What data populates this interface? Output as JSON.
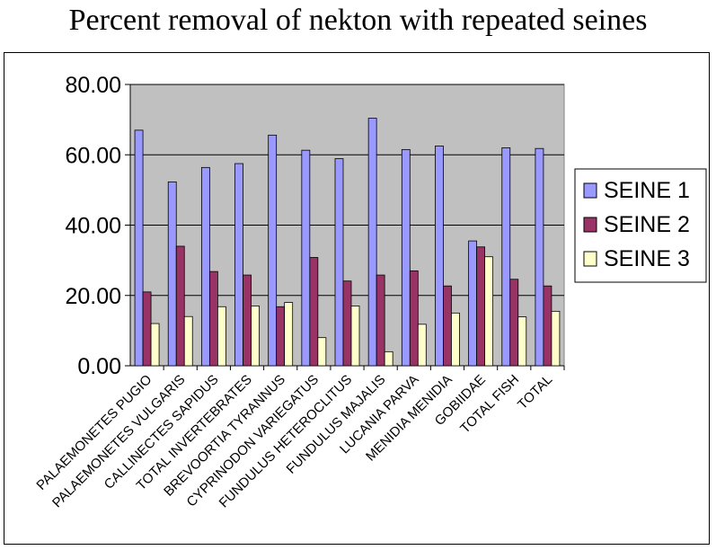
{
  "chart_data": {
    "type": "bar",
    "title": "Percent removal of nekton with repeated seines",
    "xlabel": "",
    "ylabel": "",
    "ylim": [
      0,
      80
    ],
    "yticks": [
      "0.00",
      "20.00",
      "40.00",
      "60.00",
      "80.00"
    ],
    "grid": true,
    "legend_position": "right",
    "categories": [
      "PALAEMONETES PUGIO",
      "PALAEMONETES VULGARIS",
      "CALLINECTES SAPIDUS",
      "TOTAL INVERTEBRATES",
      "BREVOORTIA TYRANNUS",
      "CYPRINODON VARIEGATUS",
      "FUNDULUS HETEROCLITUS",
      "FUNDULUS MAJALIS",
      "LUCANIA PARVA",
      "MENIDIA MENIDIA",
      "GOBIIDAE",
      "TOTAL FISH",
      "TOTAL"
    ],
    "series": [
      {
        "name": "SEINE 1",
        "color": "#9999ff",
        "values": [
          67.0,
          52.3,
          56.4,
          57.5,
          65.6,
          61.3,
          58.9,
          70.4,
          61.5,
          62.5,
          35.5,
          62.0,
          61.8
        ]
      },
      {
        "name": "SEINE 2",
        "color": "#993366",
        "values": [
          21.0,
          34.0,
          26.8,
          25.8,
          16.8,
          30.8,
          24.1,
          25.8,
          27.0,
          22.7,
          33.8,
          24.6,
          22.7
        ]
      },
      {
        "name": "SEINE 3",
        "color": "#ffffcc",
        "values": [
          12.0,
          14.0,
          16.8,
          17.0,
          18.0,
          8.0,
          17.0,
          4.0,
          11.8,
          15.0,
          31.0,
          13.9,
          15.5
        ]
      }
    ],
    "plot_background": "#c0c0c0"
  }
}
